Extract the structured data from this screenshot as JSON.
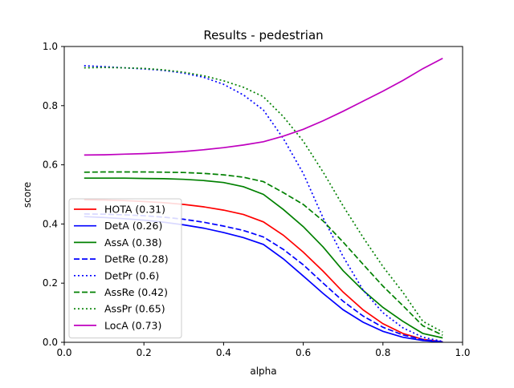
{
  "chart_data": {
    "type": "line",
    "title": "Results - pedestrian",
    "xlabel": "alpha",
    "ylabel": "score",
    "xlim": [
      0,
      1
    ],
    "ylim": [
      0,
      1
    ],
    "x_ticks": [
      "0.0",
      "0.2",
      "0.4",
      "0.6",
      "0.8",
      "1.0"
    ],
    "y_ticks": [
      "0.0",
      "0.2",
      "0.4",
      "0.6",
      "0.8",
      "1.0"
    ],
    "grid": false,
    "legend_position": "lower-left",
    "x": [
      0.05,
      0.1,
      0.15,
      0.2,
      0.25,
      0.3,
      0.35,
      0.4,
      0.45,
      0.5,
      0.55,
      0.6,
      0.65,
      0.7,
      0.75,
      0.8,
      0.85,
      0.9,
      0.95
    ],
    "series": [
      {
        "name": "HOTA (0.31)",
        "color": "#ff0000",
        "dash": "solid",
        "values": [
          0.482,
          0.481,
          0.479,
          0.476,
          0.472,
          0.466,
          0.458,
          0.447,
          0.432,
          0.407,
          0.362,
          0.305,
          0.24,
          0.17,
          0.11,
          0.063,
          0.03,
          0.01,
          0.002
        ]
      },
      {
        "name": "DetA (0.26)",
        "color": "#0000ff",
        "dash": "solid",
        "values": [
          0.425,
          0.422,
          0.418,
          0.413,
          0.406,
          0.397,
          0.386,
          0.371,
          0.354,
          0.331,
          0.282,
          0.224,
          0.165,
          0.11,
          0.068,
          0.037,
          0.017,
          0.006,
          0.001
        ]
      },
      {
        "name": "AssA (0.38)",
        "color": "#008000",
        "dash": "solid",
        "values": [
          0.555,
          0.555,
          0.555,
          0.554,
          0.553,
          0.551,
          0.547,
          0.54,
          0.526,
          0.5,
          0.449,
          0.391,
          0.322,
          0.242,
          0.176,
          0.118,
          0.071,
          0.03,
          0.015
        ]
      },
      {
        "name": "DetRe (0.28)",
        "color": "#0000ff",
        "dash": "dashed",
        "values": [
          0.434,
          0.433,
          0.431,
          0.428,
          0.423,
          0.416,
          0.406,
          0.393,
          0.378,
          0.356,
          0.314,
          0.262,
          0.2,
          0.139,
          0.089,
          0.051,
          0.025,
          0.009,
          0.002
        ]
      },
      {
        "name": "DetPr (0.6)",
        "color": "#0000ff",
        "dash": "dotted",
        "values": [
          0.935,
          0.932,
          0.928,
          0.924,
          0.919,
          0.91,
          0.896,
          0.872,
          0.836,
          0.785,
          0.689,
          0.571,
          0.42,
          0.29,
          0.177,
          0.1,
          0.049,
          0.017,
          0.003
        ]
      },
      {
        "name": "AssRe (0.42)",
        "color": "#008000",
        "dash": "dashed",
        "values": [
          0.575,
          0.576,
          0.576,
          0.576,
          0.575,
          0.574,
          0.571,
          0.566,
          0.558,
          0.543,
          0.506,
          0.466,
          0.41,
          0.339,
          0.264,
          0.19,
          0.124,
          0.056,
          0.024
        ]
      },
      {
        "name": "AssPr (0.65)",
        "color": "#008000",
        "dash": "dotted",
        "values": [
          0.928,
          0.929,
          0.928,
          0.926,
          0.921,
          0.913,
          0.901,
          0.884,
          0.862,
          0.83,
          0.763,
          0.68,
          0.575,
          0.461,
          0.355,
          0.256,
          0.169,
          0.071,
          0.035
        ]
      },
      {
        "name": "LocA (0.73)",
        "color": "#bf00bf",
        "dash": "solid",
        "values": [
          0.633,
          0.634,
          0.636,
          0.638,
          0.641,
          0.645,
          0.651,
          0.658,
          0.667,
          0.678,
          0.697,
          0.72,
          0.749,
          0.781,
          0.815,
          0.849,
          0.885,
          0.925,
          0.96
        ]
      }
    ]
  }
}
